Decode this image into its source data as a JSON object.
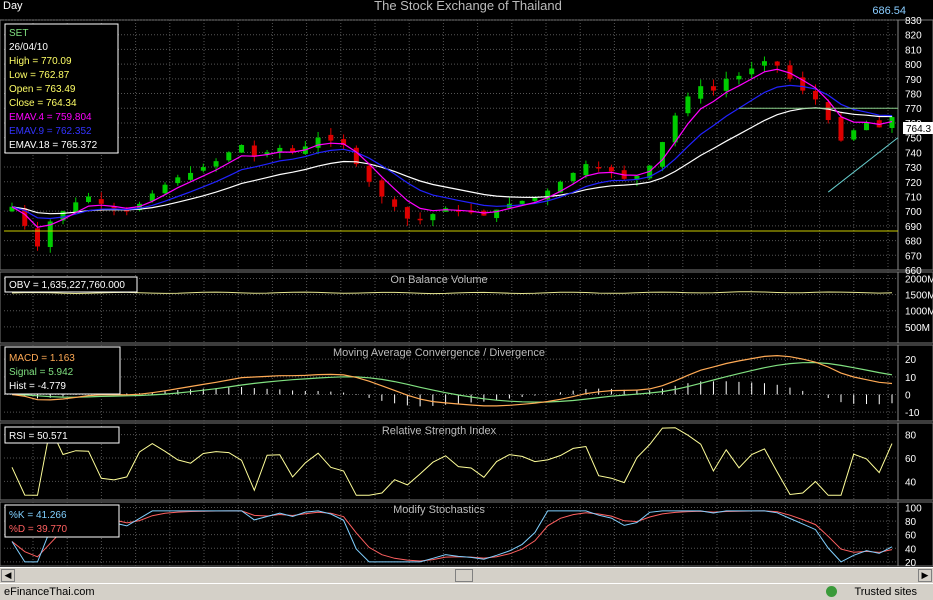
{
  "header": {
    "period": "Day",
    "title": "The Stock Exchange of Thailand",
    "value": "686.54"
  },
  "info": {
    "symbol": "SET",
    "date": "26/04/10",
    "high": "High  = 770.09",
    "low": "Low   = 762.87",
    "open": "Open = 763.49",
    "close": "Close = 764.34",
    "emav4": "EMAV.4 = 759.804",
    "emav9": "EMAV.9 = 762.352",
    "emav18": "EMAV.18 = 765.372"
  },
  "last_price_label": "764.3",
  "obv": {
    "title": "On Balance Volume",
    "readout": "OBV = 1,635,227,760.000"
  },
  "macd": {
    "title": "Moving Average Convergence / Divergence",
    "macd": "MACD = 1.163",
    "signal": "Signal = 5.942",
    "hist": "Hist = -4.779"
  },
  "rsi": {
    "title": "Relative Strength Index",
    "readout": "RSI = 50.571"
  },
  "stoch": {
    "title": "Modify Stochastics",
    "k": "%K = 41.266",
    "d": "%D = 39.770"
  },
  "statusbar": {
    "left": "eFinanceThai.com",
    "right": "Trusted sites"
  },
  "colors": {
    "bg": "#000000",
    "grid": "#555555",
    "up": "#00cc00",
    "down": "#dd0000",
    "emav4": "#ff00ff",
    "emav9": "#2222ff",
    "emav18": "#ffffff",
    "info_yellow": "#ffff66",
    "signal_green": "#80e080",
    "macd_orange": "#ffaa55",
    "hist_white": "#ffffff",
    "obv_yellow": "#e8e890",
    "rsi_yellow": "#ffff99",
    "stoch_k": "#80d0ff",
    "stoch_d": "#ff6060"
  },
  "chart_data": [
    {
      "type": "candlestick",
      "title": "The Stock Exchange of Thailand",
      "ylim": [
        660,
        830
      ],
      "yticks": [
        670,
        680,
        690,
        700,
        710,
        720,
        730,
        740,
        750,
        760,
        770,
        780,
        790,
        800,
        810,
        820,
        830
      ],
      "series_names": [
        "EMAV.4",
        "EMAV.9",
        "EMAV.18"
      ],
      "close": [
        703,
        690,
        676,
        693,
        700,
        706,
        710,
        705,
        702,
        700,
        705,
        712,
        718,
        723,
        726,
        730,
        734,
        740,
        745,
        737,
        740,
        743,
        740,
        744,
        750,
        748,
        745,
        732,
        720,
        710,
        703,
        695,
        694,
        698,
        702,
        700,
        699,
        697,
        701,
        705,
        707,
        709,
        714,
        720,
        726,
        732,
        729,
        727,
        722,
        724,
        731,
        747,
        765,
        778,
        785,
        782,
        790,
        792,
        797,
        802,
        799,
        790,
        782,
        776,
        762,
        748,
        755,
        760,
        757,
        764
      ]
    },
    {
      "type": "line",
      "title": "On Balance Volume",
      "yticks": [
        "2000M",
        "1500M",
        "1000M",
        "500M"
      ]
    },
    {
      "type": "line",
      "title": "Moving Average Convergence / Divergence",
      "yticks": [
        20,
        10,
        0,
        -10
      ],
      "ylim": [
        -15,
        28
      ]
    },
    {
      "type": "line",
      "title": "Relative Strength Index",
      "yticks": [
        80,
        60,
        40
      ],
      "ylim": [
        24,
        90
      ]
    },
    {
      "type": "line",
      "title": "Modify Stochastics",
      "yticks": [
        100,
        80,
        60,
        40,
        20
      ],
      "ylim": [
        14,
        108
      ]
    }
  ]
}
